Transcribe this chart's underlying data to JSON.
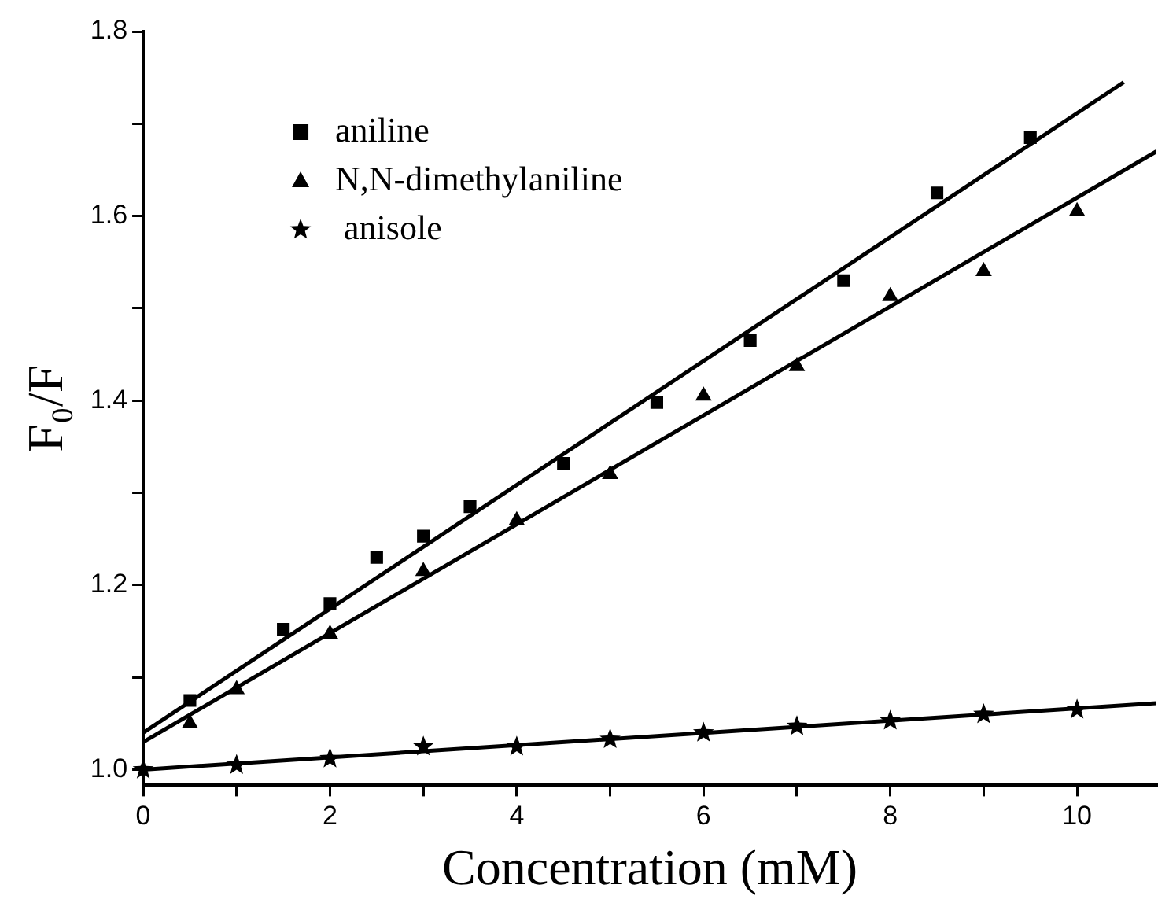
{
  "chart_data": {
    "type": "scatter",
    "xlabel": "Concentration (mM)",
    "ylabel": "F₀/F",
    "xlim": [
      0,
      10.85
    ],
    "xticks": [
      0,
      {
        "value": 1,
        "label": null
      },
      2,
      {
        "value": 3,
        "label": null
      },
      4,
      {
        "value": 5,
        "label": null
      },
      6,
      {
        "value": 7,
        "label": null
      },
      8,
      {
        "value": 9,
        "label": null
      },
      10
    ],
    "ylim": [
      0.983,
      1.8
    ],
    "yticks": [
      {
        "value": 1.0,
        "label": "1.0"
      },
      {
        "value": 1.1,
        "label": null
      },
      {
        "value": 1.2,
        "label": "1.2"
      },
      {
        "value": 1.3,
        "label": null
      },
      {
        "value": 1.4,
        "label": "1.4"
      },
      {
        "value": 1.5,
        "label": null
      },
      {
        "value": 1.6,
        "label": "1.6"
      },
      {
        "value": 1.7,
        "label": null
      },
      {
        "value": 1.8,
        "label": "1.8"
      }
    ],
    "grid": false,
    "legend": "top left",
    "series": [
      {
        "name": "aniline",
        "type": "scatter",
        "marker": "square",
        "color": "#000000",
        "x": [
          0.5,
          1.5,
          2,
          2.5,
          3,
          3.5,
          4.5,
          5.5,
          6.5,
          7.5,
          8.5,
          9.5
        ],
        "values": [
          1.075,
          1.152,
          1.18,
          1.23,
          1.253,
          1.285,
          1.332,
          1.398,
          1.465,
          1.53,
          1.625,
          1.685
        ]
      },
      {
        "name": "N,N-dimethylaniline",
        "type": "scatter",
        "marker": "triangle",
        "color": "#000000",
        "x": [
          0.5,
          1,
          2,
          3,
          4,
          5,
          6,
          7,
          8,
          9,
          10
        ],
        "values": [
          1.05,
          1.087,
          1.147,
          1.215,
          1.27,
          1.32,
          1.405,
          1.437,
          1.513,
          1.54,
          1.605
        ]
      },
      {
        "name": " anisole",
        "type": "scatter",
        "marker": "star",
        "color": "#000000",
        "x": [
          0,
          1,
          2,
          3,
          4,
          5,
          6,
          7,
          8,
          9,
          10
        ],
        "values": [
          1.0,
          1.005,
          1.012,
          1.025,
          1.025,
          1.033,
          1.04,
          1.047,
          1.053,
          1.06,
          1.065
        ]
      },
      {
        "type": "line",
        "marker": "none",
        "line_style": "solid",
        "color": "#000000",
        "x": [
          0,
          10.5
        ],
        "values": [
          1.04,
          1.745
        ]
      },
      {
        "type": "line",
        "marker": "none",
        "line_style": "solid",
        "color": "#000000",
        "x": [
          0,
          10.85
        ],
        "values": [
          1.03,
          1.67
        ]
      },
      {
        "type": "line",
        "marker": "none",
        "line_style": "solid",
        "color": "#000000",
        "x": [
          0,
          10.85
        ],
        "values": [
          1.0,
          1.072
        ]
      }
    ]
  }
}
